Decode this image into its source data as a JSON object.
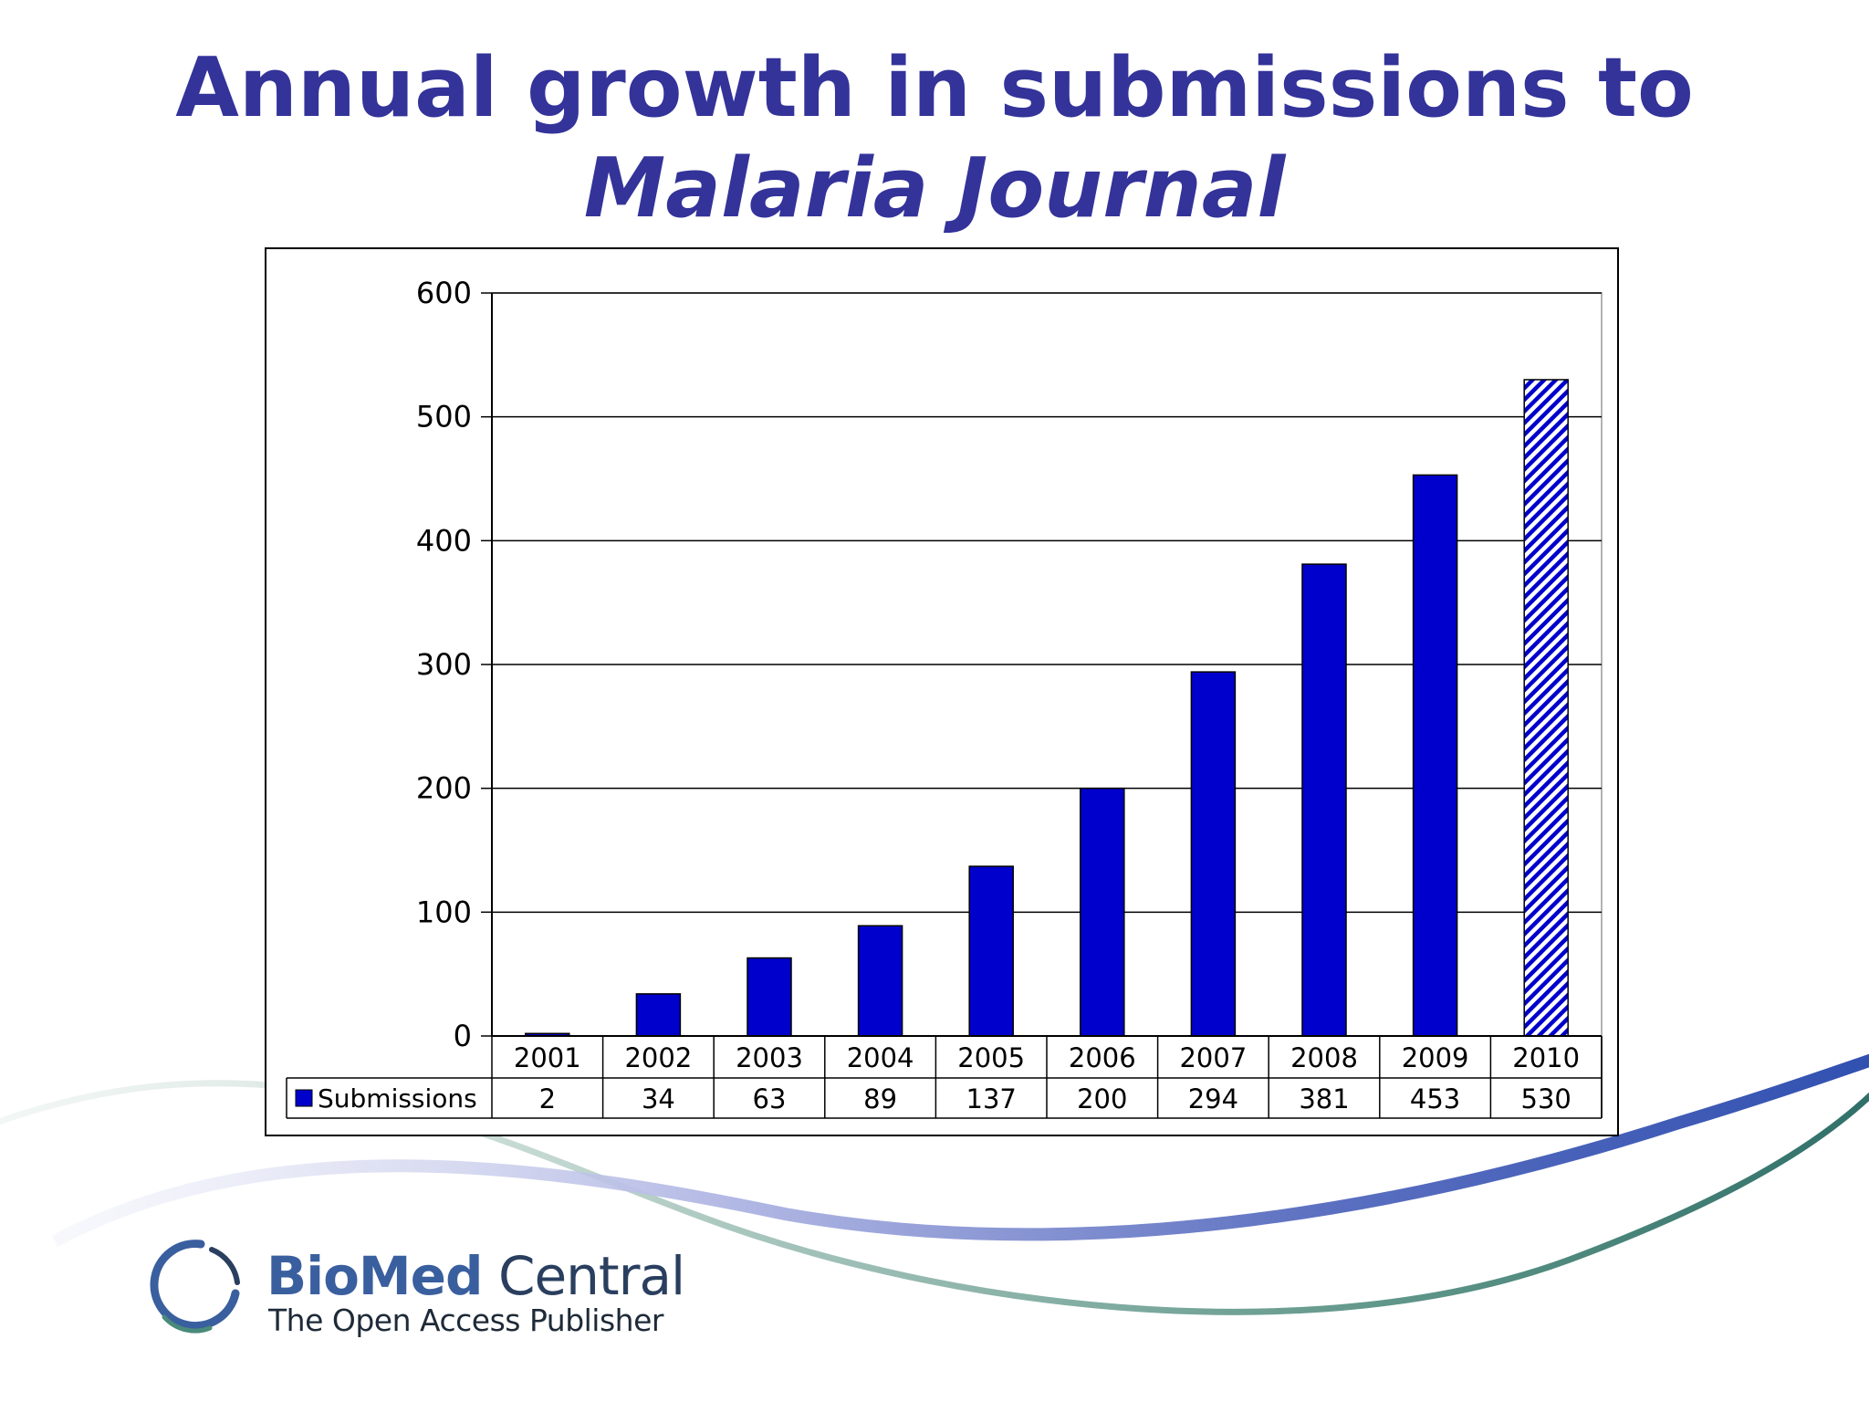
{
  "slide": {
    "title_line1": "Annual growth in submissions to",
    "title_line2": "Malaria Journal",
    "title_color": "#33339a"
  },
  "chart_data": {
    "type": "bar",
    "categories": [
      "2001",
      "2002",
      "2003",
      "2004",
      "2005",
      "2006",
      "2007",
      "2008",
      "2009",
      "2010"
    ],
    "series": [
      {
        "name": "Submissions",
        "values": [
          2,
          34,
          63,
          89,
          137,
          200,
          294,
          381,
          453,
          530
        ],
        "color": "#0000cc"
      }
    ],
    "hatched_categories": [
      "2010"
    ],
    "ylim": [
      0,
      600
    ],
    "yticks": [
      "0",
      "100",
      "200",
      "300",
      "400",
      "500",
      "600"
    ],
    "grid": true,
    "legend": "data-table-below",
    "data_table": true
  },
  "logo": {
    "brand_bio": "BioMed",
    "brand_central": " Central",
    "tagline": "The Open Access Publisher",
    "colors": {
      "primary": "#3a5f9f",
      "teal": "#4a8a7a"
    }
  }
}
